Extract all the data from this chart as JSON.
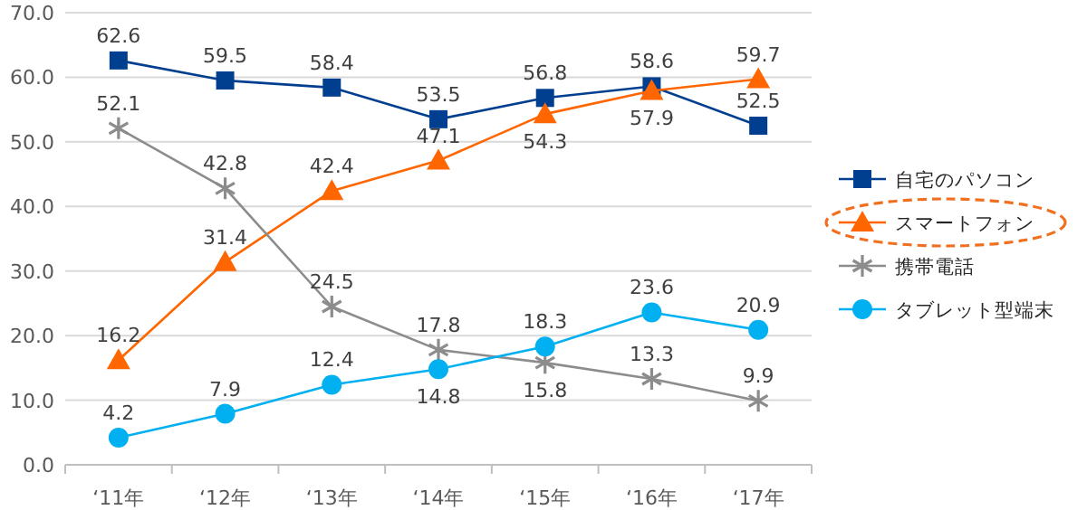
{
  "chart_data": {
    "type": "line",
    "categories": [
      "‘11年",
      "‘12年",
      "‘13年",
      "‘14年",
      "‘15年",
      "‘16年",
      "‘17年"
    ],
    "ylim": [
      0,
      70
    ],
    "yticks": [
      {
        "value": 0,
        "label": "0.0"
      },
      {
        "value": 10,
        "label": "10.0"
      },
      {
        "value": 20,
        "label": "20.0"
      },
      {
        "value": 30,
        "label": "30.0"
      },
      {
        "value": 40,
        "label": "40.0"
      },
      {
        "value": 50,
        "label": "50.0"
      },
      {
        "value": 60,
        "label": "60.0"
      },
      {
        "value": 70,
        "label": "70.0"
      }
    ],
    "grid": "y",
    "legend": "right",
    "data_labels": true,
    "series": [
      {
        "name": "自宅のパソコン",
        "color": "#003f8f",
        "marker": "square",
        "values": [
          62.6,
          59.5,
          58.4,
          53.5,
          56.8,
          58.6,
          52.5
        ]
      },
      {
        "name": "スマートフォン",
        "color": "#ff6600",
        "marker": "triangle",
        "values": [
          16.2,
          31.4,
          42.4,
          47.1,
          54.3,
          57.9,
          59.7
        ]
      },
      {
        "name": "携帯電話",
        "color": "#8c8c8c",
        "marker": "cross",
        "values": [
          52.1,
          42.8,
          24.5,
          17.8,
          15.8,
          13.3,
          9.9
        ]
      },
      {
        "name": "タブレット型端末",
        "color": "#00b0f0",
        "marker": "circle",
        "values": [
          4.2,
          7.9,
          12.4,
          14.8,
          18.3,
          23.6,
          20.9
        ]
      }
    ]
  }
}
